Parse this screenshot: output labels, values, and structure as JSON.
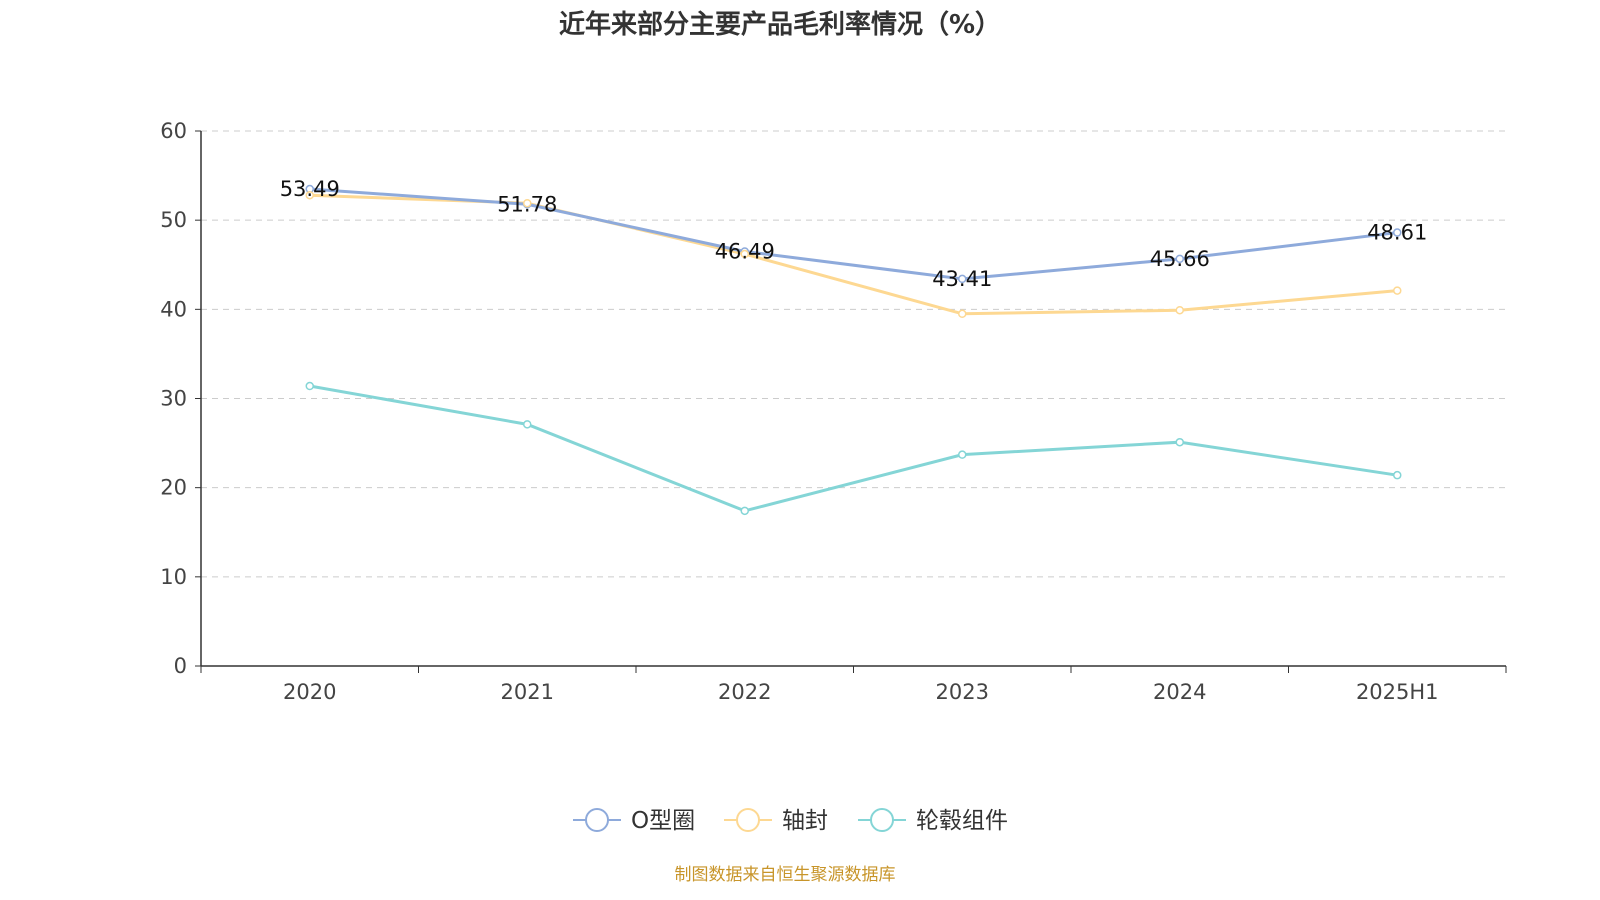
{
  "chart_data": {
    "type": "line",
    "title": "近年来部分主要产品毛利率情况（%）",
    "categories": [
      "2020",
      "2021",
      "2022",
      "2023",
      "2024",
      "2025H1"
    ],
    "ylim": [
      0,
      60
    ],
    "yticks": [
      0,
      10,
      20,
      30,
      40,
      50,
      60
    ],
    "grid": true,
    "legend_position": "bottom",
    "series": [
      {
        "name": "O型圈",
        "color": "#8eaadb",
        "values": [
          53.49,
          51.78,
          46.49,
          43.41,
          45.66,
          48.61
        ],
        "labels": [
          "53.49",
          "51.78",
          "46.49",
          "43.41",
          "45.66",
          "48.61"
        ]
      },
      {
        "name": "轴封",
        "color": "#fdd892",
        "values": [
          52.8,
          51.9,
          46.2,
          39.5,
          39.9,
          42.1
        ]
      },
      {
        "name": "轮毂组件",
        "color": "#84d5d6",
        "values": [
          31.4,
          27.1,
          17.4,
          23.7,
          25.1,
          21.4
        ]
      }
    ]
  },
  "source": "制图数据来自恒生聚源数据库"
}
